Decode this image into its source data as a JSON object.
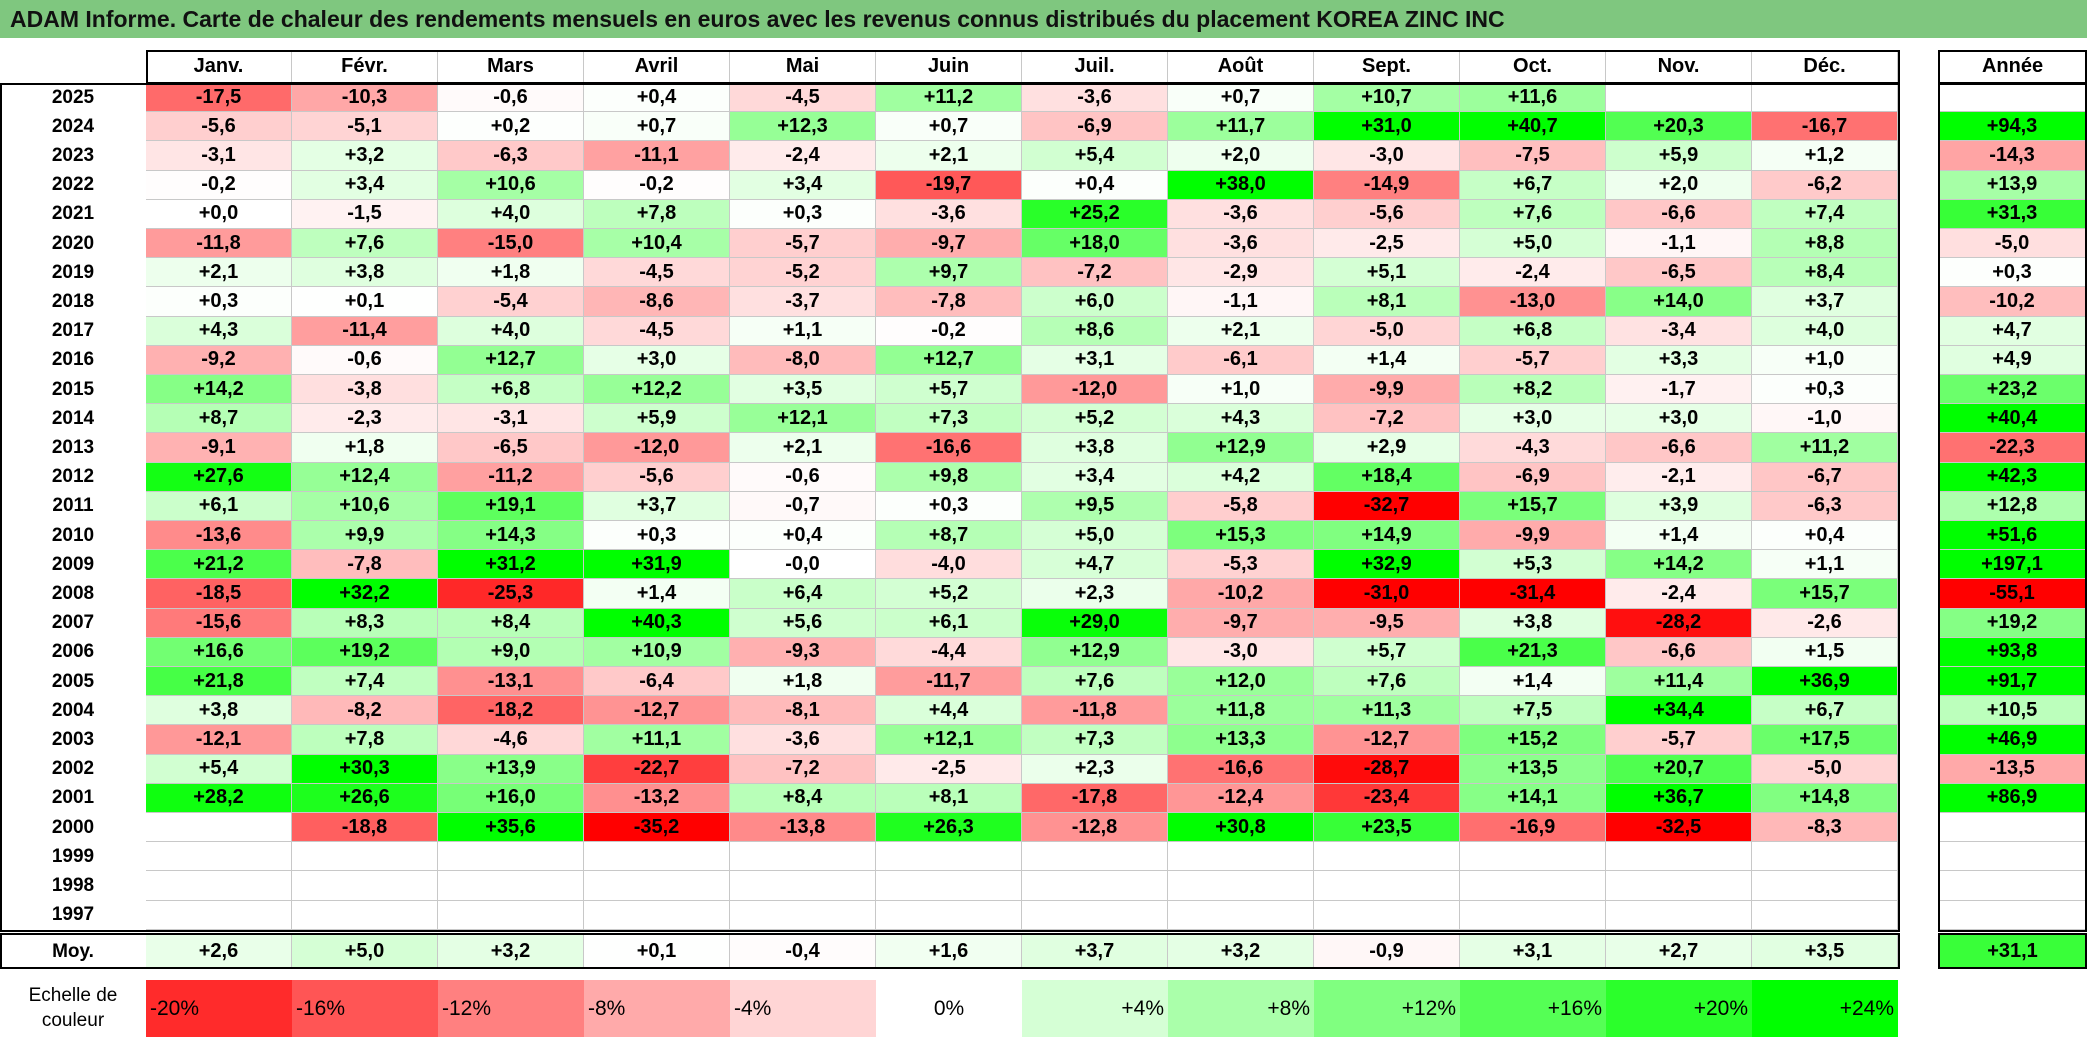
{
  "title": "ADAM Informe. Carte de chaleur des rendements mensuels en euros avec les revenus connus distribués du placement KOREA ZINC INC",
  "chart_data": {
    "type": "heatmap",
    "title": "ADAM Informe. Carte de chaleur des rendements mensuels en euros avec les revenus connus distribués du placement KOREA ZINC INC",
    "columns": [
      "Janv.",
      "Févr.",
      "Mars",
      "Avril",
      "Mai",
      "Juin",
      "Juil.",
      "Août",
      "Sept.",
      "Oct.",
      "Nov.",
      "Déc."
    ],
    "year_column_label": "Année",
    "rows": [
      {
        "year": "2025",
        "values": [
          "-17,5",
          "-10,3",
          "-0,6",
          "+0,4",
          "-4,5",
          "+11,2",
          "-3,6",
          "+0,7",
          "+10,7",
          "+11,6",
          "",
          ""
        ],
        "annual": ""
      },
      {
        "year": "2024",
        "values": [
          "-5,6",
          "-5,1",
          "+0,2",
          "+0,7",
          "+12,3",
          "+0,7",
          "-6,9",
          "+11,7",
          "+31,0",
          "+40,7",
          "+20,3",
          "-16,7"
        ],
        "annual": "+94,3"
      },
      {
        "year": "2023",
        "values": [
          "-3,1",
          "+3,2",
          "-6,3",
          "-11,1",
          "-2,4",
          "+2,1",
          "+5,4",
          "+2,0",
          "-3,0",
          "-7,5",
          "+5,9",
          "+1,2"
        ],
        "annual": "-14,3"
      },
      {
        "year": "2022",
        "values": [
          "-0,2",
          "+3,4",
          "+10,6",
          "-0,2",
          "+3,4",
          "-19,7",
          "+0,4",
          "+38,0",
          "-14,9",
          "+6,7",
          "+2,0",
          "-6,2"
        ],
        "annual": "+13,9"
      },
      {
        "year": "2021",
        "values": [
          "+0,0",
          "-1,5",
          "+4,0",
          "+7,8",
          "+0,3",
          "-3,6",
          "+25,2",
          "-3,6",
          "-5,6",
          "+7,6",
          "-6,6",
          "+7,4"
        ],
        "annual": "+31,3"
      },
      {
        "year": "2020",
        "values": [
          "-11,8",
          "+7,6",
          "-15,0",
          "+10,4",
          "-5,7",
          "-9,7",
          "+18,0",
          "-3,6",
          "-2,5",
          "+5,0",
          "-1,1",
          "+8,8"
        ],
        "annual": "-5,0"
      },
      {
        "year": "2019",
        "values": [
          "+2,1",
          "+3,8",
          "+1,8",
          "-4,5",
          "-5,2",
          "+9,7",
          "-7,2",
          "-2,9",
          "+5,1",
          "-2,4",
          "-6,5",
          "+8,4"
        ],
        "annual": "+0,3"
      },
      {
        "year": "2018",
        "values": [
          "+0,3",
          "+0,1",
          "-5,4",
          "-8,6",
          "-3,7",
          "-7,8",
          "+6,0",
          "-1,1",
          "+8,1",
          "-13,0",
          "+14,0",
          "+3,7"
        ],
        "annual": "-10,2"
      },
      {
        "year": "2017",
        "values": [
          "+4,3",
          "-11,4",
          "+4,0",
          "-4,5",
          "+1,1",
          "-0,2",
          "+8,6",
          "+2,1",
          "-5,0",
          "+6,8",
          "-3,4",
          "+4,0"
        ],
        "annual": "+4,7"
      },
      {
        "year": "2016",
        "values": [
          "-9,2",
          "-0,6",
          "+12,7",
          "+3,0",
          "-8,0",
          "+12,7",
          "+3,1",
          "-6,1",
          "+1,4",
          "-5,7",
          "+3,3",
          "+1,0"
        ],
        "annual": "+4,9"
      },
      {
        "year": "2015",
        "values": [
          "+14,2",
          "-3,8",
          "+6,8",
          "+12,2",
          "+3,5",
          "+5,7",
          "-12,0",
          "+1,0",
          "-9,9",
          "+8,2",
          "-1,7",
          "+0,3"
        ],
        "annual": "+23,2"
      },
      {
        "year": "2014",
        "values": [
          "+8,7",
          "-2,3",
          "-3,1",
          "+5,9",
          "+12,1",
          "+7,3",
          "+5,2",
          "+4,3",
          "-7,2",
          "+3,0",
          "+3,0",
          "-1,0"
        ],
        "annual": "+40,4"
      },
      {
        "year": "2013",
        "values": [
          "-9,1",
          "+1,8",
          "-6,5",
          "-12,0",
          "+2,1",
          "-16,6",
          "+3,8",
          "+12,9",
          "+2,9",
          "-4,3",
          "-6,6",
          "+11,2"
        ],
        "annual": "-22,3"
      },
      {
        "year": "2012",
        "values": [
          "+27,6",
          "+12,4",
          "-11,2",
          "-5,6",
          "-0,6",
          "+9,8",
          "+3,4",
          "+4,2",
          "+18,4",
          "-6,9",
          "-2,1",
          "-6,7"
        ],
        "annual": "+42,3"
      },
      {
        "year": "2011",
        "values": [
          "+6,1",
          "+10,6",
          "+19,1",
          "+3,7",
          "-0,7",
          "+0,3",
          "+9,5",
          "-5,8",
          "-32,7",
          "+15,7",
          "+3,9",
          "-6,3"
        ],
        "annual": "+12,8"
      },
      {
        "year": "2010",
        "values": [
          "-13,6",
          "+9,9",
          "+14,3",
          "+0,3",
          "+0,4",
          "+8,7",
          "+5,0",
          "+15,3",
          "+14,9",
          "-9,9",
          "+1,4",
          "+0,4"
        ],
        "annual": "+51,6"
      },
      {
        "year": "2009",
        "values": [
          "+21,2",
          "-7,8",
          "+31,2",
          "+31,9",
          "-0,0",
          "-4,0",
          "+4,7",
          "-5,3",
          "+32,9",
          "+5,3",
          "+14,2",
          "+1,1"
        ],
        "annual": "+197,1"
      },
      {
        "year": "2008",
        "values": [
          "-18,5",
          "+32,2",
          "-25,3",
          "+1,4",
          "+6,4",
          "+5,2",
          "+2,3",
          "-10,2",
          "-31,0",
          "-31,4",
          "-2,4",
          "+15,7"
        ],
        "annual": "-55,1"
      },
      {
        "year": "2007",
        "values": [
          "-15,6",
          "+8,3",
          "+8,4",
          "+40,3",
          "+5,6",
          "+6,1",
          "+29,0",
          "-9,7",
          "-9,5",
          "+3,8",
          "-28,2",
          "-2,6"
        ],
        "annual": "+19,2"
      },
      {
        "year": "2006",
        "values": [
          "+16,6",
          "+19,2",
          "+9,0",
          "+10,9",
          "-9,3",
          "-4,4",
          "+12,9",
          "-3,0",
          "+5,7",
          "+21,3",
          "-6,6",
          "+1,5"
        ],
        "annual": "+93,8"
      },
      {
        "year": "2005",
        "values": [
          "+21,8",
          "+7,4",
          "-13,1",
          "-6,4",
          "+1,8",
          "-11,7",
          "+7,6",
          "+12,0",
          "+7,6",
          "+1,4",
          "+11,4",
          "+36,9"
        ],
        "annual": "+91,7"
      },
      {
        "year": "2004",
        "values": [
          "+3,8",
          "-8,2",
          "-18,2",
          "-12,7",
          "-8,1",
          "+4,4",
          "-11,8",
          "+11,8",
          "+11,3",
          "+7,5",
          "+34,4",
          "+6,7"
        ],
        "annual": "+10,5"
      },
      {
        "year": "2003",
        "values": [
          "-12,1",
          "+7,8",
          "-4,6",
          "+11,1",
          "-3,6",
          "+12,1",
          "+7,3",
          "+13,3",
          "-12,7",
          "+15,2",
          "-5,7",
          "+17,5"
        ],
        "annual": "+46,9"
      },
      {
        "year": "2002",
        "values": [
          "+5,4",
          "+30,3",
          "+13,9",
          "-22,7",
          "-7,2",
          "-2,5",
          "+2,3",
          "-16,6",
          "-28,7",
          "+13,5",
          "+20,7",
          "-5,0"
        ],
        "annual": "-13,5"
      },
      {
        "year": "2001",
        "values": [
          "+28,2",
          "+26,6",
          "+16,0",
          "-13,2",
          "+8,4",
          "+8,1",
          "-17,8",
          "-12,4",
          "-23,4",
          "+14,1",
          "+36,7",
          "+14,8"
        ],
        "annual": "+86,9"
      },
      {
        "year": "2000",
        "values": [
          "",
          "-18,8",
          "+35,6",
          "-35,2",
          "-13,8",
          "+26,3",
          "-12,8",
          "+30,8",
          "+23,5",
          "-16,9",
          "-32,5",
          "-8,3"
        ],
        "annual": ""
      },
      {
        "year": "1999",
        "values": [
          "",
          "",
          "",
          "",
          "",
          "",
          "",
          "",
          "",
          "",
          "",
          ""
        ],
        "annual": ""
      },
      {
        "year": "1998",
        "values": [
          "",
          "",
          "",
          "",
          "",
          "",
          "",
          "",
          "",
          "",
          "",
          ""
        ],
        "annual": ""
      },
      {
        "year": "1997",
        "values": [
          "",
          "",
          "",
          "",
          "",
          "",
          "",
          "",
          "",
          "",
          "",
          ""
        ],
        "annual": ""
      }
    ],
    "average": {
      "label": "Moy.",
      "values": [
        "+2,6",
        "+5,0",
        "+3,2",
        "+0,1",
        "-0,4",
        "+1,6",
        "+3,7",
        "+3,2",
        "-0,9",
        "+3,1",
        "+2,7",
        "+3,5"
      ],
      "annual": "+31,1"
    },
    "legend": {
      "label": "Echelle de couleur",
      "steps": [
        "-20%",
        "-16%",
        "-12%",
        "-8%",
        "-4%",
        "0%",
        "+4%",
        "+8%",
        "+12%",
        "+16%",
        "+20%",
        "+24%"
      ]
    },
    "colors": {
      "negative_max": "#ff0000",
      "neutral": "#ffffff",
      "positive_max": "#00ff00",
      "title_bar": "#7fc77f"
    }
  }
}
